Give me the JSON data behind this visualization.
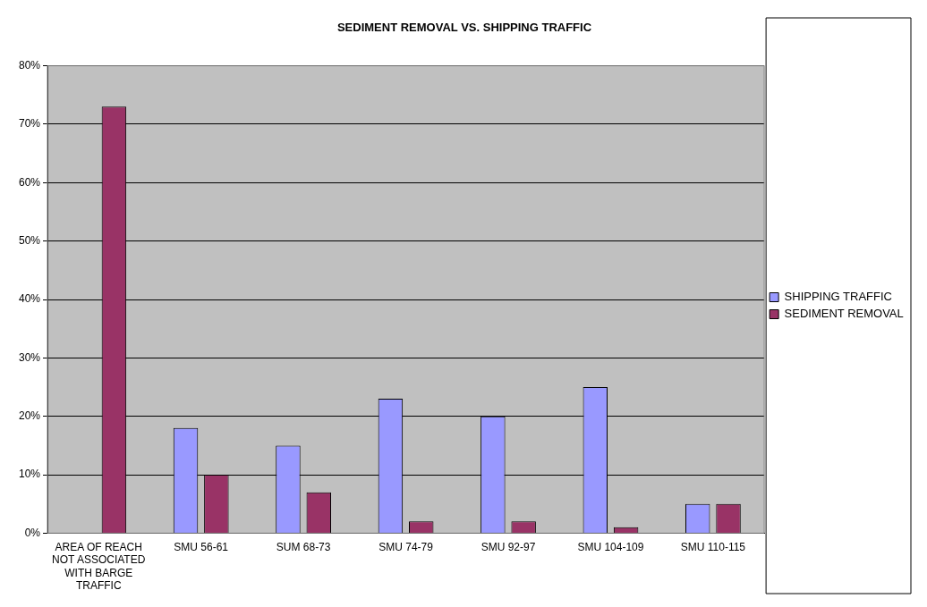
{
  "chart_data": {
    "type": "bar",
    "title": "SEDIMENT REMOVAL VS. SHIPPING TRAFFIC",
    "categories": [
      "AREA OF REACH NOT ASSOCIATED WITH BARGE TRAFFIC",
      "SMU 56-61",
      "SUM 68-73",
      "SMU 74-79",
      "SMU 92-97",
      "SMU 104-109",
      "SMU 110-115"
    ],
    "series": [
      {
        "name": "SHIPPING TRAFFIC",
        "color": "#9999ff",
        "values": [
          null,
          18,
          15,
          23,
          20,
          25,
          5
        ]
      },
      {
        "name": "SEDIMENT REMOVAL",
        "color": "#993366",
        "values": [
          73,
          10,
          7,
          2,
          2,
          1,
          5
        ]
      }
    ],
    "ylim": [
      0,
      80
    ],
    "yticks": [
      {
        "value": 0,
        "label": "0%"
      },
      {
        "value": 10,
        "label": "10%"
      },
      {
        "value": 20,
        "label": "20%"
      },
      {
        "value": 30,
        "label": "30%"
      },
      {
        "value": 40,
        "label": "40%"
      },
      {
        "value": 50,
        "label": "50%"
      },
      {
        "value": 60,
        "label": "60%"
      },
      {
        "value": 70,
        "label": "70%"
      },
      {
        "value": 80,
        "label": "80%"
      }
    ],
    "grid": "y",
    "legend": "right"
  }
}
